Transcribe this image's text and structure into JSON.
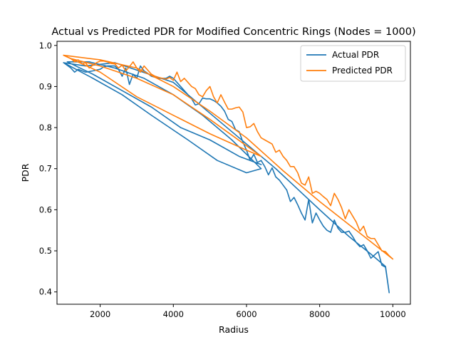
{
  "chart_data": {
    "type": "line",
    "title": "Actual vs Predicted PDR for Modified Concentric Rings (Nodes = 1000)",
    "xlabel": "Radius",
    "ylabel": "PDR",
    "xlim": [
      820,
      10480
    ],
    "ylim": [
      0.37,
      1.01
    ],
    "xticks": [
      2000,
      4000,
      6000,
      8000,
      10000
    ],
    "yticks": [
      0.4,
      0.5,
      0.6,
      0.7,
      0.8,
      0.9,
      1.0
    ],
    "xtick_labels": [
      "2000",
      "4000",
      "6000",
      "8000",
      "10000"
    ],
    "ytick_labels": [
      "0.4",
      "0.5",
      "0.6",
      "0.7",
      "0.8",
      "0.9",
      "1.0"
    ],
    "grid": false,
    "legend_position": "top-right",
    "series": [
      {
        "name": "Actual PDR",
        "color": "#1f77b4",
        "x": [
          1000,
          1200,
          1300,
          1400,
          1600,
          1800,
          2000,
          2100,
          2200,
          2400,
          2500,
          2600,
          2700,
          2800,
          2900,
          3000,
          3100,
          3200,
          3300,
          3400,
          3600,
          3800,
          3900,
          4000,
          4100,
          4200,
          4300,
          4400,
          4500,
          4600,
          4700,
          4800,
          4900,
          5000,
          5100,
          5200,
          5300,
          5400,
          5500,
          5600,
          5700,
          5800,
          5900,
          6000,
          6100,
          6200,
          6300,
          6400,
          6500,
          6600,
          6700,
          6800,
          6900,
          7000,
          7100,
          7200,
          7300,
          7400,
          7500,
          7600,
          7700,
          7800,
          7900,
          8000,
          8100,
          8200,
          8300,
          8400,
          8500,
          8600,
          8700,
          8800,
          8900,
          9000,
          9100,
          9200,
          9300,
          9400,
          9500,
          9600,
          9700,
          9800,
          9900,
          9800,
          9400,
          8800,
          8000,
          7400,
          6800,
          6400,
          5200,
          4000,
          2400,
          1600,
          1000,
          1800,
          2600,
          3400,
          4400,
          5200,
          6000,
          6400,
          5600,
          4800,
          4000,
          3200,
          2400,
          1700,
          1100,
          1800,
          2600,
          3400,
          4200,
          5000,
          5800,
          6400
        ],
        "y": [
          0.958,
          0.945,
          0.935,
          0.942,
          0.935,
          0.938,
          0.942,
          0.948,
          0.95,
          0.95,
          0.942,
          0.925,
          0.945,
          0.905,
          0.93,
          0.92,
          0.95,
          0.938,
          0.932,
          0.925,
          0.92,
          0.92,
          0.925,
          0.92,
          0.91,
          0.9,
          0.89,
          0.88,
          0.87,
          0.855,
          0.858,
          0.872,
          0.87,
          0.87,
          0.866,
          0.86,
          0.852,
          0.84,
          0.82,
          0.815,
          0.795,
          0.79,
          0.765,
          0.745,
          0.72,
          0.735,
          0.715,
          0.72,
          0.705,
          0.685,
          0.702,
          0.68,
          0.672,
          0.66,
          0.648,
          0.62,
          0.63,
          0.612,
          0.592,
          0.575,
          0.625,
          0.568,
          0.592,
          0.575,
          0.56,
          0.55,
          0.545,
          0.575,
          0.555,
          0.545,
          0.545,
          0.548,
          0.535,
          0.52,
          0.51,
          0.515,
          0.5,
          0.482,
          0.49,
          0.498,
          0.465,
          0.46,
          0.398,
          0.462,
          0.492,
          0.535,
          0.6,
          0.65,
          0.7,
          0.73,
          0.82,
          0.91,
          0.958,
          0.95,
          0.958,
          0.92,
          0.88,
          0.83,
          0.77,
          0.72,
          0.69,
          0.7,
          0.77,
          0.83,
          0.88,
          0.92,
          0.945,
          0.96,
          0.96,
          0.93,
          0.89,
          0.85,
          0.8,
          0.77,
          0.73,
          0.71
        ]
      },
      {
        "name": "Predicted PDR",
        "color": "#ff7f0e",
        "x": [
          1000,
          1100,
          1200,
          1300,
          1400,
          1500,
          1600,
          1700,
          1800,
          1900,
          2000,
          2100,
          2200,
          2300,
          2400,
          2500,
          2600,
          2700,
          2800,
          2900,
          3000,
          3100,
          3200,
          3300,
          3400,
          3500,
          3600,
          3700,
          3800,
          3900,
          4000,
          4100,
          4200,
          4300,
          4400,
          4500,
          4600,
          4700,
          4800,
          4900,
          5000,
          5100,
          5200,
          5300,
          5400,
          5500,
          5600,
          5700,
          5800,
          5900,
          6000,
          6100,
          6200,
          6300,
          6400,
          6500,
          6600,
          6700,
          6800,
          6900,
          7000,
          7100,
          7200,
          7300,
          7400,
          7500,
          7600,
          7700,
          7800,
          7900,
          8000,
          8100,
          8200,
          8300,
          8400,
          8500,
          8600,
          8700,
          8800,
          8900,
          9000,
          9100,
          9200,
          9300,
          9400,
          9500,
          9600,
          9700,
          9800,
          9900,
          10000,
          9000,
          8000,
          7000,
          6000,
          5000,
          4000,
          3000,
          2000,
          1000,
          2000,
          3000,
          4000,
          5000,
          6000,
          6400,
          5000,
          4000,
          3000,
          2000,
          1200
        ],
        "y": [
          0.976,
          0.972,
          0.968,
          0.96,
          0.965,
          0.955,
          0.958,
          0.945,
          0.952,
          0.958,
          0.962,
          0.962,
          0.96,
          0.956,
          0.955,
          0.945,
          0.952,
          0.938,
          0.948,
          0.96,
          0.945,
          0.935,
          0.95,
          0.94,
          0.93,
          0.925,
          0.922,
          0.92,
          0.918,
          0.922,
          0.915,
          0.935,
          0.912,
          0.92,
          0.91,
          0.9,
          0.895,
          0.88,
          0.875,
          0.89,
          0.9,
          0.875,
          0.86,
          0.88,
          0.862,
          0.845,
          0.845,
          0.848,
          0.85,
          0.838,
          0.8,
          0.802,
          0.81,
          0.79,
          0.775,
          0.77,
          0.765,
          0.76,
          0.74,
          0.745,
          0.73,
          0.72,
          0.705,
          0.705,
          0.69,
          0.665,
          0.66,
          0.68,
          0.64,
          0.645,
          0.64,
          0.632,
          0.625,
          0.61,
          0.64,
          0.625,
          0.605,
          0.578,
          0.6,
          0.585,
          0.57,
          0.548,
          0.56,
          0.535,
          0.53,
          0.53,
          0.515,
          0.5,
          0.498,
          0.488,
          0.48,
          0.55,
          0.62,
          0.695,
          0.775,
          0.84,
          0.9,
          0.945,
          0.965,
          0.976,
          0.935,
          0.875,
          0.83,
          0.785,
          0.745,
          0.73,
          0.82,
          0.88,
          0.92,
          0.95,
          0.968
        ]
      }
    ]
  }
}
